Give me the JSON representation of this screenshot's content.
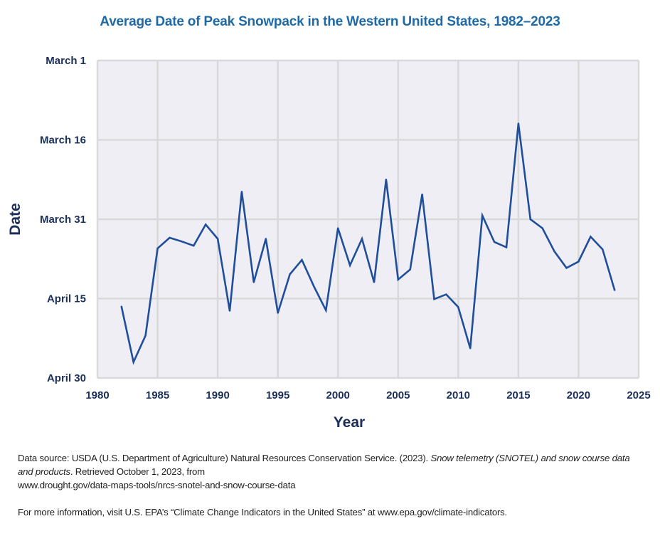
{
  "title": "Average Date of Peak Snowpack in the Western United States, 1982–2023",
  "colors": {
    "title": "#1f6aa5",
    "line": "#1f4e9a",
    "plot_background": "#f0eef5",
    "gridline": "#d9d9d9",
    "axis_text": "#1c2f59"
  },
  "chart_data": {
    "type": "line",
    "title": "Average Date of Peak Snowpack in the Western United States, 1982–2023",
    "xlabel": "Year",
    "ylabel": "Date",
    "xlim": [
      1980,
      2025
    ],
    "x_ticks": [
      1980,
      1985,
      1990,
      1995,
      2000,
      2005,
      2010,
      2015,
      2020,
      2025
    ],
    "y_units": "day of year (non-leap; March 1 = 60)",
    "ylim": [
      60,
      120
    ],
    "y_inverted": true,
    "y_ticks": [
      {
        "value": 60,
        "label": "March 1"
      },
      {
        "value": 75,
        "label": "March 16"
      },
      {
        "value": 90,
        "label": "March 31"
      },
      {
        "value": 105,
        "label": "April 15"
      },
      {
        "value": 120,
        "label": "April 30"
      }
    ],
    "grid": true,
    "legend": "none",
    "series": [
      {
        "name": "Average date of peak snowpack",
        "x": [
          1982,
          1983,
          1984,
          1985,
          1986,
          1987,
          1988,
          1989,
          1990,
          1991,
          1992,
          1993,
          1994,
          1995,
          1996,
          1997,
          1998,
          1999,
          2000,
          2001,
          2002,
          2003,
          2004,
          2005,
          2006,
          2007,
          2008,
          2009,
          2010,
          2011,
          2012,
          2013,
          2014,
          2015,
          2016,
          2017,
          2018,
          2019,
          2020,
          2021,
          2022,
          2023
        ],
        "values": [
          106.5,
          117,
          112,
          95.5,
          93.5,
          94.2,
          95,
          91,
          93.7,
          107.3,
          84.8,
          101.9,
          93.7,
          107.7,
          100.4,
          97.7,
          102.7,
          107.2,
          91.7,
          98.7,
          93.7,
          101.9,
          82.5,
          101.4,
          99.5,
          85.3,
          105.1,
          104.2,
          106.6,
          114.4,
          89.3,
          94.3,
          95.3,
          71.9,
          90,
          91.7,
          96.1,
          99.2,
          98,
          93.3,
          95.7,
          103.4
        ]
      }
    ]
  },
  "footnotes": {
    "source_prefix": "Data source:  USDA (U.S. Department of Agriculture) Natural Resources Conservation Service. (2023). ",
    "source_italic": "Snow telemetry (SNOTEL) and snow course data and products",
    "source_suffix": ". Retrieved October 1, 2023, from",
    "source_url": "www.drought.gov/data-maps-tools/nrcs-snotel-and-snow-course-data",
    "more_info": "For more information, visit U.S. EPA’s “Climate Change Indicators in the United States” at www.epa.gov/climate-indicators."
  }
}
